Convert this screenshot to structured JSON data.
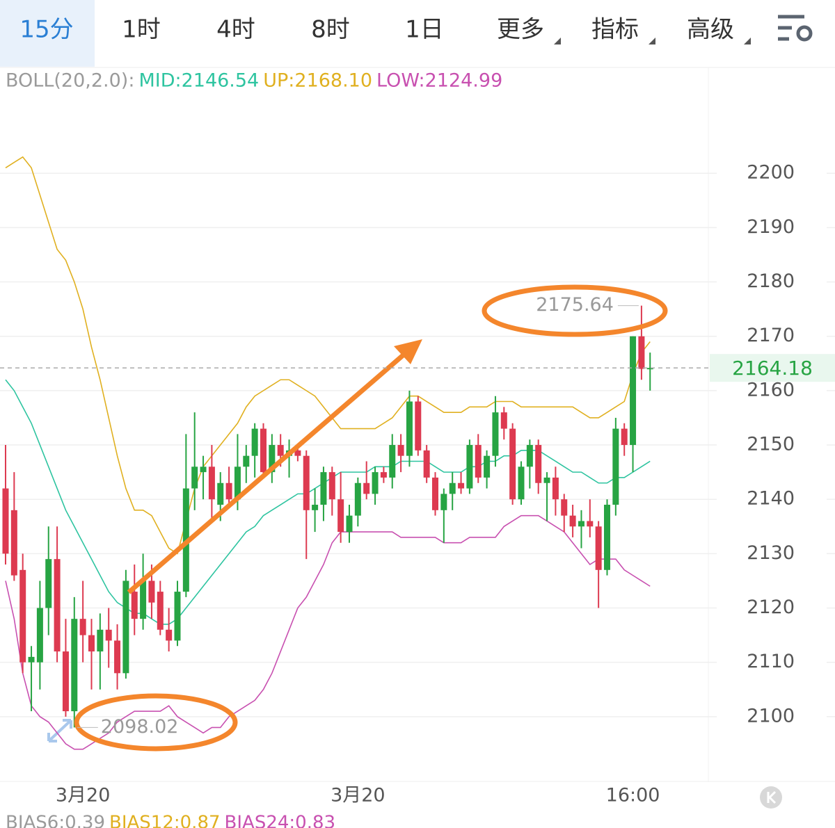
{
  "tabs": [
    "15分",
    "1时",
    "4时",
    "8时",
    "1日",
    "更多",
    "指标",
    "高级"
  ],
  "indicator_legend": [
    {
      "text": "BOLL(20,2.0):",
      "color": "#9a9a9a"
    },
    {
      "text": "MID:2146.54",
      "color": "#2ec4a0"
    },
    {
      "text": "UP:2168.10",
      "color": "#e0b020"
    },
    {
      "text": "LOW:2124.99",
      "color": "#c850b0"
    }
  ],
  "bottom_legend": [
    {
      "text": "BIAS6:0.39",
      "color": "#9a9a9a"
    },
    {
      "text": "BIAS12:0.87",
      "color": "#e0b020"
    },
    {
      "text": "BIAS24:0.83",
      "color": "#c850b0"
    }
  ],
  "chart_data": {
    "type": "candlestick",
    "up_color": "#27a443",
    "down_color": "#dd3a50",
    "categories": [
      null,
      null,
      null,
      null,
      null,
      null,
      null,
      null,
      null,
      "3月20",
      null,
      null,
      null,
      null,
      null,
      null,
      null,
      null,
      null,
      null,
      null,
      null,
      null,
      null,
      null,
      null,
      null,
      null,
      null,
      null,
      null,
      null,
      null,
      null,
      null,
      null,
      null,
      null,
      null,
      null,
      null,
      "3月20",
      null,
      null,
      null,
      null,
      null,
      null,
      null,
      null,
      null,
      null,
      null,
      null,
      null,
      null,
      null,
      null,
      null,
      null,
      null,
      null,
      null,
      null,
      null,
      null,
      null,
      null,
      null,
      null,
      null,
      null,
      null,
      "16:00",
      null,
      null
    ],
    "open": [
      2142,
      2138,
      2127,
      2110,
      2110,
      2120,
      2129,
      2112,
      2101,
      2118,
      2115,
      2112,
      2116,
      2114,
      2108,
      2123,
      2118,
      2125,
      2123,
      2116,
      2114,
      2123,
      2142,
      2145,
      2146,
      2139,
      2143,
      2140,
      2146,
      2148,
      2153,
      2145,
      2150,
      2148,
      2149,
      2148,
      2138,
      2139,
      2145,
      2140,
      2134,
      2137,
      2143,
      2141,
      2145,
      2144,
      2150,
      2148,
      2158,
      2149,
      2144,
      2138,
      2141,
      2143,
      2142,
      2150,
      2144,
      2148,
      2156,
      2153,
      2140,
      2146,
      2150,
      2143,
      2144,
      2140,
      2137,
      2135,
      2136,
      2135,
      2127,
      2139,
      2153,
      2150,
      2170,
      2164
    ],
    "high": [
      2150,
      2145,
      2130,
      2113,
      2125,
      2135,
      2135,
      2118,
      2122,
      2125,
      2118,
      2119,
      2120,
      2117,
      2127,
      2128,
      2130,
      2128,
      2125,
      2120,
      2125,
      2152,
      2156,
      2148,
      2150,
      2145,
      2146,
      2152,
      2150,
      2154,
      2154,
      2152,
      2152,
      2151,
      2150,
      2149,
      2142,
      2146,
      2146,
      2145,
      2139,
      2144,
      2147,
      2146,
      2146,
      2152,
      2152,
      2160,
      2159,
      2150,
      2145,
      2142,
      2145,
      2145,
      2151,
      2152,
      2149,
      2159,
      2157,
      2154,
      2147,
      2151,
      2151,
      2145,
      2146,
      2141,
      2139,
      2138,
      2140,
      2136,
      2140,
      2155,
      2154,
      2170,
      2175.64,
      2167
    ],
    "low": [
      2128,
      2125,
      2108,
      2101,
      2105,
      2115,
      2110,
      2100,
      2098.02,
      2110,
      2105,
      2105,
      2109,
      2105,
      2107,
      2115,
      2116,
      2118,
      2115,
      2112,
      2113,
      2122,
      2138,
      2140,
      2136,
      2136,
      2139,
      2138,
      2143,
      2144,
      2144,
      2143,
      2146,
      2144,
      2147,
      2129,
      2134,
      2136,
      2137,
      2132,
      2132,
      2135,
      2140,
      2139,
      2143,
      2142,
      2145,
      2146,
      2148,
      2143,
      2137,
      2132,
      2138,
      2141,
      2141,
      2143,
      2142,
      2146,
      2151,
      2139,
      2139,
      2142,
      2141,
      2136,
      2137,
      2134,
      2133,
      2131,
      2133,
      2120,
      2126,
      2137,
      2148,
      2145,
      2162,
      2160
    ],
    "close": [
      2130,
      2126,
      2110,
      2111,
      2120,
      2129,
      2112,
      2101,
      2118,
      2115,
      2112,
      2116,
      2114,
      2108,
      2125,
      2118,
      2125,
      2121,
      2116,
      2114,
      2123,
      2142,
      2146,
      2146,
      2140,
      2143,
      2140,
      2146,
      2148,
      2153,
      2145,
      2150,
      2148,
      2149,
      2148,
      2138,
      2139,
      2145,
      2140,
      2134,
      2137,
      2143,
      2141,
      2145,
      2144,
      2150,
      2148,
      2158,
      2149,
      2144,
      2138,
      2141,
      2143,
      2142,
      2150,
      2144,
      2148,
      2156,
      2153,
      2140,
      2146,
      2150,
      2143,
      2144,
      2140,
      2137,
      2135,
      2136,
      2135,
      2127,
      2139,
      2153,
      2150,
      2170,
      2164,
      2164.18
    ],
    "boll_lines": [
      {
        "color": "#e0b020",
        "values": [
          2201,
          2202,
          2203,
          2201,
          2196,
          2191,
          2186,
          2184,
          2180,
          2175,
          2168,
          2162,
          2155,
          2148,
          2142,
          2138,
          2138,
          2137,
          2134,
          2131,
          2130,
          2136,
          2142,
          2146,
          2148,
          2150,
          2152,
          2154,
          2157,
          2159,
          2160,
          2161,
          2162,
          2162,
          2161,
          2160,
          2159,
          2157,
          2155,
          2153,
          2153,
          2153,
          2153,
          2153,
          2154,
          2155,
          2157,
          2159,
          2159,
          2158,
          2157,
          2156,
          2156,
          2156,
          2157,
          2157,
          2157,
          2158,
          2158,
          2158,
          2157,
          2157,
          2157,
          2157,
          2157,
          2157,
          2157,
          2156,
          2155,
          2155,
          2156,
          2157,
          2158,
          2163,
          2167,
          2169
        ]
      },
      {
        "color": "#2ec4a0",
        "values": [
          2162,
          2160,
          2157,
          2154,
          2150,
          2146,
          2142,
          2138,
          2135,
          2132,
          2129,
          2126,
          2123,
          2121,
          2120,
          2119,
          2119,
          2118,
          2117,
          2117,
          2118,
          2120,
          2122,
          2124,
          2126,
          2128,
          2130,
          2132,
          2134,
          2135,
          2137,
          2138,
          2139,
          2140,
          2141,
          2141,
          2142,
          2143,
          2144,
          2145,
          2145,
          2145,
          2145,
          2146,
          2146,
          2146,
          2147,
          2147,
          2147,
          2147,
          2146,
          2145,
          2145,
          2145,
          2146,
          2146,
          2147,
          2147,
          2148,
          2148,
          2149,
          2149,
          2149,
          2148,
          2147,
          2146,
          2145,
          2145,
          2144,
          2143,
          2143,
          2144,
          2144,
          2145,
          2146,
          2147
        ]
      },
      {
        "color": "#c850b0",
        "values": [
          2125,
          2118,
          2108,
          2102,
          2100,
          2099,
          2097,
          2095,
          2094,
          2094,
          2095,
          2096,
          2097,
          2099,
          2100,
          2101,
          2101,
          2101,
          2101,
          2102,
          2100,
          2099,
          2098,
          2097,
          2098,
          2098,
          2100,
          2101,
          2102,
          2103,
          2105,
          2108,
          2112,
          2116,
          2120,
          2122,
          2125,
          2128,
          2132,
          2134,
          2134,
          2134,
          2134,
          2134,
          2134,
          2134,
          2133,
          2133,
          2133,
          2133,
          2133,
          2132,
          2132,
          2132,
          2133,
          2133,
          2133,
          2133,
          2135,
          2136,
          2137,
          2137,
          2137,
          2136,
          2135,
          2134,
          2132,
          2130,
          2128,
          2129,
          2129,
          2129,
          2127,
          2126,
          2125,
          2124
        ]
      }
    ],
    "high_marker": 2175.64,
    "low_marker": 2098.02,
    "last_price": 2164.18,
    "last_price_color": "#27a443",
    "ylim": [
      2090,
      2215
    ],
    "yticks": [
      2100,
      2110,
      2120,
      2130,
      2140,
      2150,
      2160,
      2170,
      2180,
      2190,
      2200
    ],
    "grid": true
  }
}
